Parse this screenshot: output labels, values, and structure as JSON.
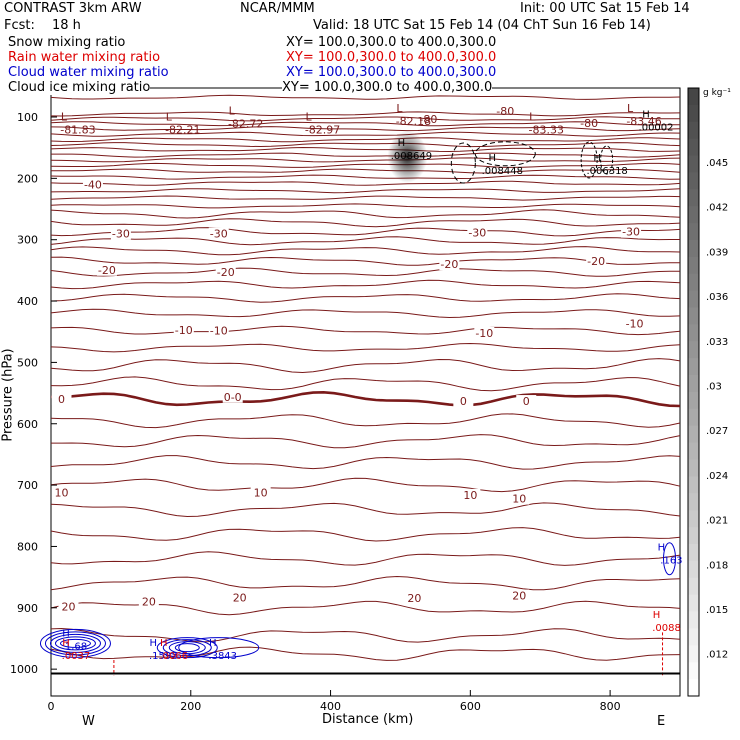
{
  "header": {
    "model": "CONTRAST  3km ARW",
    "org": "NCAR/MMM",
    "init": "Init: 00 UTC Sat 15 Feb 14",
    "fcst_label": "Fcst:",
    "fcst_value": "18 h",
    "valid": "Valid: 18 UTC Sat 15 Feb 14 (04 ChT Sun 16 Feb 14)"
  },
  "fields": [
    {
      "name": "Snow mixing ratio",
      "xy": "XY= 100.0,300.0 to 400.0,300.0",
      "color": "#000000"
    },
    {
      "name": "Rain water mixing ratio",
      "xy": "XY= 100.0,300.0 to 400.0,300.0",
      "color": "#dd0000"
    },
    {
      "name": "Cloud water mixing ratio",
      "xy": "XY= 100.0,300.0 to 400.0,300.0",
      "color": "#0000cc"
    },
    {
      "name": "Cloud ice mixing ratio",
      "xy": "XY= 100.0,300.0 to 400.0,300.0",
      "color": "#000000"
    }
  ],
  "chart_data": {
    "type": "contour",
    "xlabel": "Distance (km)",
    "ylabel": "Pressure (hPa)",
    "x_range": [
      0,
      900
    ],
    "y_range": [
      1000,
      65
    ],
    "x_ticks": [
      0,
      200,
      400,
      600,
      800
    ],
    "y_ticks": [
      100,
      200,
      300,
      400,
      500,
      600,
      700,
      800,
      900,
      1000
    ],
    "x_end_labels": {
      "left": "W",
      "right": "E"
    },
    "temperature_labels": [
      {
        "x": 60,
        "p": 210,
        "v": "-40"
      },
      {
        "x": 100,
        "p": 290,
        "v": "-30"
      },
      {
        "x": 240,
        "p": 290,
        "v": "-30"
      },
      {
        "x": 610,
        "p": 288,
        "v": "-30"
      },
      {
        "x": 830,
        "p": 287,
        "v": "-30"
      },
      {
        "x": 80,
        "p": 349,
        "v": "-20"
      },
      {
        "x": 250,
        "p": 353,
        "v": "-20"
      },
      {
        "x": 570,
        "p": 340,
        "v": "-20"
      },
      {
        "x": 780,
        "p": 335,
        "v": "-20"
      },
      {
        "x": 190,
        "p": 447,
        "v": "-10"
      },
      {
        "x": 240,
        "p": 448,
        "v": "-10"
      },
      {
        "x": 620,
        "p": 452,
        "v": "-10"
      },
      {
        "x": 835,
        "p": 437,
        "v": "-10"
      },
      {
        "x": 15,
        "p": 560,
        "v": "0"
      },
      {
        "x": 260,
        "p": 556,
        "v": "0-0"
      },
      {
        "x": 590,
        "p": 563,
        "v": "0"
      },
      {
        "x": 680,
        "p": 563,
        "v": "0"
      },
      {
        "x": 15,
        "p": 712,
        "v": "10"
      },
      {
        "x": 300,
        "p": 712,
        "v": "10"
      },
      {
        "x": 600,
        "p": 716,
        "v": "10"
      },
      {
        "x": 670,
        "p": 722,
        "v": "10"
      },
      {
        "x": 25,
        "p": 898,
        "v": "20"
      },
      {
        "x": 140,
        "p": 890,
        "v": "20"
      },
      {
        "x": 270,
        "p": 883,
        "v": "20"
      },
      {
        "x": 520,
        "p": 884,
        "v": "20"
      },
      {
        "x": 670,
        "p": 880,
        "v": "20"
      }
    ],
    "upper_minima": [
      {
        "x": 30,
        "p": 106,
        "L": "L",
        "v": "-81.83"
      },
      {
        "x": 180,
        "p": 106,
        "L": "L",
        "v": "-82.21"
      },
      {
        "x": 270,
        "p": 96,
        "L": "L",
        "v": "-82.72"
      },
      {
        "x": 380,
        "p": 106,
        "L": "L",
        "v": "-82.97"
      },
      {
        "x": 510,
        "p": 92,
        "L": "L",
        "v": "-82.18"
      },
      {
        "x": 700,
        "p": 106,
        "L": "L",
        "v": "-83.33"
      },
      {
        "x": 840,
        "p": 92,
        "L": "L",
        "v": "-83.46"
      }
    ],
    "upper_m80": [
      {
        "x": 540,
        "p": 103,
        "v": "-80"
      },
      {
        "x": 650,
        "p": 90,
        "v": "-80"
      },
      {
        "x": 770,
        "p": 110,
        "v": "-80"
      }
    ],
    "hydrometeor_maxima": [
      {
        "x": 510,
        "p": 160,
        "v": ".008649",
        "color": "#000000"
      },
      {
        "x": 640,
        "p": 185,
        "v": ".008448",
        "color": "#000000"
      },
      {
        "x": 790,
        "p": 185,
        "v": ".006318",
        "color": "#000000"
      },
      {
        "x": 860,
        "p": 114,
        "v": ".00002",
        "color": "#000000"
      },
      {
        "x": 30,
        "p": 960,
        "v": "1.68",
        "color": "#0000cc"
      },
      {
        "x": 155,
        "p": 975,
        "v": ".1592",
        "color": "#0000cc"
      },
      {
        "x": 240,
        "p": 975,
        "v": ".3843",
        "color": "#0000cc"
      },
      {
        "x": 882,
        "p": 820,
        "v": ".163",
        "color": "#0000cc"
      },
      {
        "x": 30,
        "p": 975,
        "v": ".0037",
        "color": "#dd0000"
      },
      {
        "x": 170,
        "p": 975,
        "v": ".0066",
        "color": "#dd0000"
      },
      {
        "x": 875,
        "p": 930,
        "v": ".0088",
        "color": "#dd0000"
      }
    ],
    "colorbar": {
      "unit": "g kg⁻¹",
      "labels": [
        ".045",
        ".042",
        ".039",
        ".036",
        ".033",
        ".03",
        ".027",
        ".024",
        ".021",
        ".018",
        ".015",
        ".012"
      ]
    }
  }
}
